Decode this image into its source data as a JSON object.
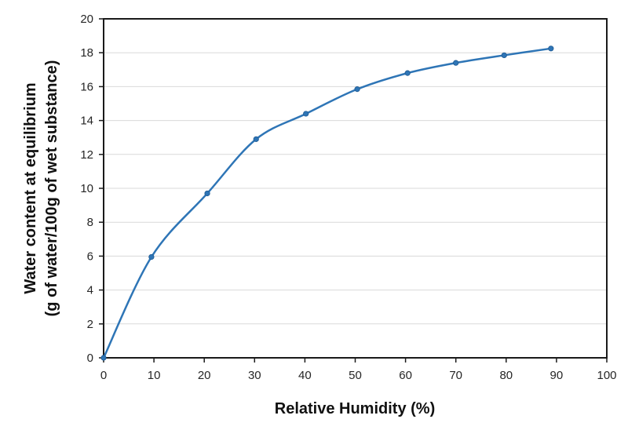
{
  "chart_data": {
    "type": "line",
    "title": "",
    "xlabel": "Relative Humidity (%)",
    "ylabel_line1": "Water content at equilibrium",
    "ylabel_line2": "(g of water/100g of wet substance)",
    "xlim": [
      0,
      100
    ],
    "ylim": [
      0,
      20
    ],
    "xticks": [
      0,
      10,
      20,
      30,
      40,
      50,
      60,
      70,
      80,
      90,
      100
    ],
    "yticks": [
      0,
      2,
      4,
      6,
      8,
      10,
      12,
      14,
      16,
      18,
      20
    ],
    "grid": {
      "horizontal": true,
      "vertical": false
    },
    "legend": null,
    "smooth": true,
    "series": [
      {
        "name": "Water content at equilibrium",
        "color": "#2e75b6",
        "marker": "circle",
        "x": [
          0,
          9.5,
          20.6,
          30.3,
          40.2,
          50.4,
          60.4,
          70.0,
          79.6,
          88.9
        ],
        "y": [
          0,
          5.95,
          9.7,
          12.9,
          14.4,
          15.85,
          16.8,
          17.4,
          17.85,
          18.25
        ]
      }
    ]
  },
  "colors": {
    "line": "#2e75b6",
    "axis": "#1a1a1a",
    "grid": "#d9d9d9",
    "text": "#262626"
  }
}
